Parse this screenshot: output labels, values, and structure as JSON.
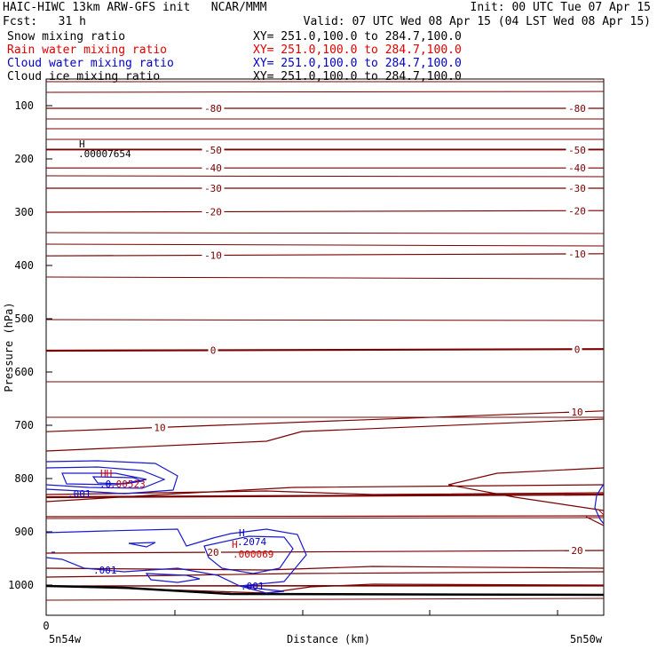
{
  "header": {
    "title": "HAIC-HIWC 13km ARW-GFS init   NCAR/MMM",
    "init": "Init: 00 UTC Tue 07 Apr 15",
    "fcst": "Fcst:   31 h",
    "valid": "Valid: 07 UTC Wed 08 Apr 15 (04 LST Wed 08 Apr 15)"
  },
  "fields": [
    {
      "name": "Snow mixing ratio",
      "xy": "XY= 251.0,100.0 to 284.7,100.0",
      "color": "#000000"
    },
    {
      "name": "Rain water mixing ratio",
      "xy": "XY= 251.0,100.0 to 284.7,100.0",
      "color": "#e00000"
    },
    {
      "name": "Cloud water mixing ratio",
      "xy": "XY= 251.0,100.0 to 284.7,100.0",
      "color": "#0000c8"
    },
    {
      "name": "Cloud ice mixing ratio",
      "xy": "XY= 251.0,100.0 to 284.7,100.0",
      "color": "#000000"
    }
  ],
  "colors": {
    "temperature": "#7a0000",
    "cloud_water": "#1a1acc",
    "rain": "#d00000",
    "snow": "#000000",
    "ground": "#000000"
  },
  "chart_data": {
    "type": "line",
    "ylabel": "Pressure (hPa)",
    "xlabel": "Distance (km)",
    "y_scale": "linear-inverted",
    "ylim": [
      1050,
      80
    ],
    "yticks": [
      100,
      200,
      300,
      400,
      500,
      600,
      700,
      800,
      900,
      1000
    ],
    "x_tick_label": "0",
    "x_left_label": "5n54w",
    "x_right_label": "5n50w",
    "grid": false,
    "temperature_isotherms": [
      {
        "label": "-80",
        "left_p": 105,
        "right_p": 105
      },
      {
        "label": "-50",
        "left_p": 183,
        "right_p": 183
      },
      {
        "label": "-40",
        "left_p": 217,
        "right_p": 217
      },
      {
        "label": "-30",
        "left_p": 255,
        "right_p": 255
      },
      {
        "label": "-20",
        "left_p": 300,
        "right_p": 297
      },
      {
        "label": "-10",
        "left_p": 382,
        "right_p": 378
      },
      {
        "label": "0",
        "left_p": 560,
        "right_p": 557
      },
      {
        "label": "10",
        "left_p": 712,
        "right_p": 673
      },
      {
        "label": "20",
        "left_p": 940,
        "right_p": 935
      }
    ],
    "labels": {
      "snow_max": "H",
      "snow_max_value": ".00007654",
      "cloud_water_max_left": "HH",
      "cloud_water_max_left_value": ".00523",
      "rain_max_left_value": ".0",
      "cloud_water_max_mid": "H",
      "cloud_water_max_mid_value": ".2074",
      "rain_max_mid": "H",
      "rain_max_mid_value": ".000069",
      "cloud_water_contour": ".001"
    }
  }
}
